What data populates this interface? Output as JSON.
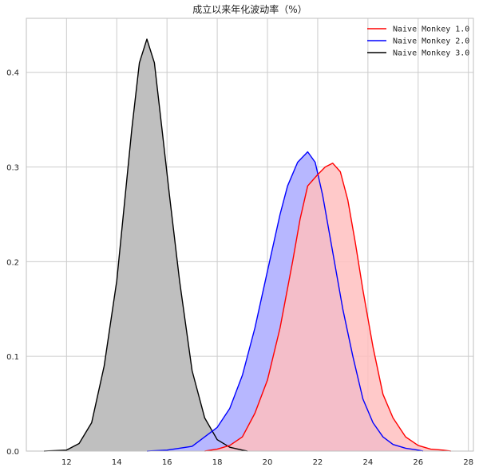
{
  "chart_data": {
    "type": "area",
    "title": "成立以来年化波动率（%）",
    "xlabel": "",
    "ylabel": "",
    "xlim": [
      10.4,
      28.2
    ],
    "ylim": [
      0,
      0.457
    ],
    "xticks": [
      12,
      14,
      16,
      18,
      20,
      22,
      24,
      26,
      28
    ],
    "yticks": [
      0.0,
      0.1,
      0.2,
      0.3,
      0.4
    ],
    "xtick_labels": [
      "12",
      "14",
      "16",
      "18",
      "20",
      "22",
      "24",
      "26",
      "28"
    ],
    "ytick_labels": [
      "0.0",
      "0.1",
      "0.2",
      "0.3",
      "0.4"
    ],
    "grid": true,
    "legend_position": "top-right",
    "series": [
      {
        "name": "Naive Monkey 1.0",
        "color": "#ff0000",
        "fill": "#ffbfbf",
        "x": [
          17.5,
          18.0,
          18.5,
          19.0,
          19.5,
          20.0,
          20.5,
          21.0,
          21.3,
          21.6,
          22.0,
          22.3,
          22.6,
          22.9,
          23.2,
          23.5,
          23.8,
          24.2,
          24.6,
          25.0,
          25.5,
          26.0,
          26.5,
          27.0,
          27.3
        ],
        "y": [
          0.0,
          0.002,
          0.006,
          0.015,
          0.04,
          0.075,
          0.13,
          0.2,
          0.245,
          0.28,
          0.292,
          0.3,
          0.304,
          0.295,
          0.265,
          0.22,
          0.17,
          0.11,
          0.06,
          0.035,
          0.015,
          0.006,
          0.002,
          0.001,
          0.0
        ]
      },
      {
        "name": "Naive Monkey 2.0",
        "color": "#0000ff",
        "fill": "#b7b7ff",
        "x": [
          15.2,
          16.0,
          17.0,
          18.0,
          18.5,
          19.0,
          19.5,
          20.0,
          20.5,
          20.8,
          21.2,
          21.6,
          21.9,
          22.2,
          22.6,
          23.0,
          23.4,
          23.8,
          24.2,
          24.6,
          25.0,
          25.5,
          26.0,
          26.2
        ],
        "y": [
          0.0,
          0.001,
          0.005,
          0.025,
          0.045,
          0.08,
          0.13,
          0.19,
          0.25,
          0.28,
          0.305,
          0.316,
          0.305,
          0.27,
          0.21,
          0.15,
          0.1,
          0.055,
          0.03,
          0.015,
          0.007,
          0.003,
          0.001,
          0.0
        ]
      },
      {
        "name": "Naive Monkey 3.0",
        "color": "#000000",
        "fill": "#bfbfbf",
        "x": [
          11.1,
          12.0,
          12.5,
          13.0,
          13.5,
          14.0,
          14.3,
          14.6,
          14.9,
          15.2,
          15.5,
          15.8,
          16.1,
          16.5,
          17.0,
          17.5,
          18.0,
          18.5,
          19.0,
          19.2
        ],
        "y": [
          0.0,
          0.001,
          0.008,
          0.03,
          0.09,
          0.18,
          0.26,
          0.34,
          0.41,
          0.435,
          0.41,
          0.34,
          0.27,
          0.18,
          0.085,
          0.035,
          0.012,
          0.004,
          0.001,
          0.0
        ]
      }
    ],
    "overlap_fill": "#bf8fcc"
  }
}
